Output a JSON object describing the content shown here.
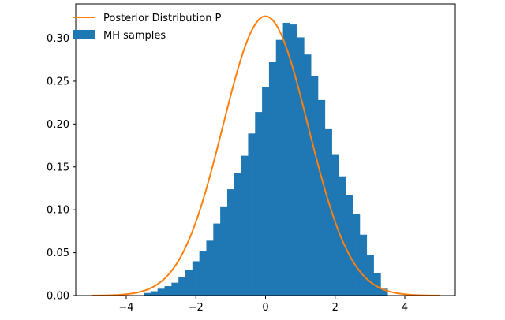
{
  "chart_data": {
    "type": "bar",
    "title": "",
    "xlabel": "",
    "ylabel": "",
    "xlim": [
      -5.45,
      5.45
    ],
    "ylim": [
      0,
      0.34
    ],
    "grid": false,
    "legend_placement": "top-left",
    "xticks": [
      -4,
      -2,
      0,
      2,
      4
    ],
    "xtick_labels": [
      "−4",
      "−2",
      "0",
      "2",
      "4"
    ],
    "yticks": [
      0.0,
      0.05,
      0.1,
      0.15,
      0.2,
      0.25,
      0.3
    ],
    "ytick_labels": [
      "0.00",
      "0.05",
      "0.10",
      "0.15",
      "0.20",
      "0.25",
      "0.30"
    ],
    "series": [
      {
        "name": "Posterior Distribution P",
        "kind": "line",
        "color": "#ff7f0e",
        "x_range": [
          -5,
          5
        ],
        "formula": "normal density, mean 0, standard deviation 1.225"
      },
      {
        "name": "MH samples",
        "kind": "histogram",
        "color": "#1f77b4",
        "bin_edges": [
          -3.5,
          3.5
        ],
        "bin_count": 35,
        "values": [
          0.003,
          0.005,
          0.008,
          0.011,
          0.015,
          0.022,
          0.03,
          0.04,
          0.052,
          0.064,
          0.084,
          0.104,
          0.124,
          0.143,
          0.163,
          0.189,
          0.214,
          0.243,
          0.272,
          0.298,
          0.318,
          0.316,
          0.301,
          0.281,
          0.256,
          0.228,
          0.194,
          0.164,
          0.139,
          0.117,
          0.095,
          0.071,
          0.047,
          0.026,
          0.008
        ]
      }
    ]
  }
}
